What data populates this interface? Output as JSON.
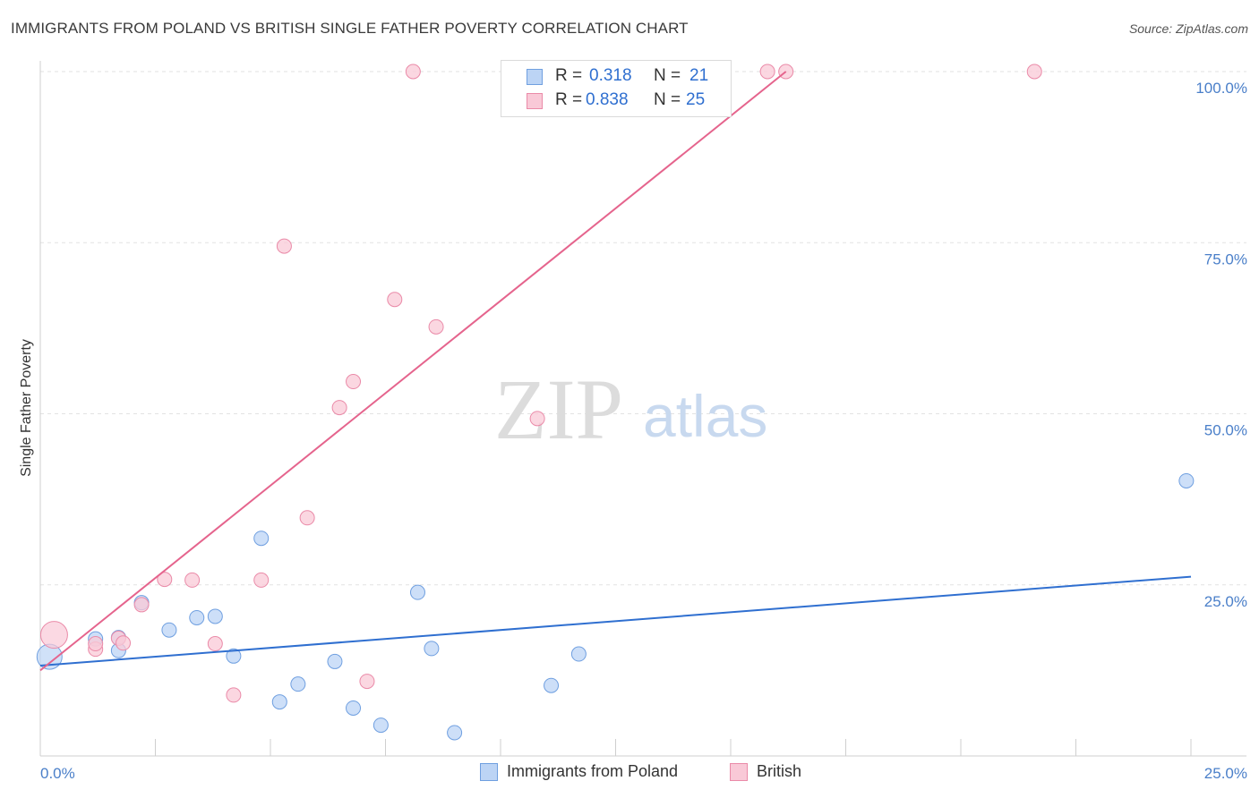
{
  "title": "IMMIGRANTS FROM POLAND VS BRITISH SINGLE FATHER POVERTY CORRELATION CHART",
  "source": "Source: ZipAtlas.com",
  "watermark": {
    "zip": "ZIP",
    "atlas": "atlas"
  },
  "legend": {
    "r_label": "R =",
    "n_label": "N =",
    "rows": [
      {
        "series": "Immigrants from Poland",
        "r": "0.318",
        "n": "21"
      },
      {
        "series": "British",
        "r": "0.838",
        "n": "25"
      }
    ]
  },
  "bottom_legend": [
    "Immigrants from Poland",
    "British"
  ],
  "colors": {
    "poland_fill": "#bcd4f5",
    "poland_stroke": "#6f9fe0",
    "poland_line": "#2f6fd0",
    "british_fill": "#f9c9d7",
    "british_stroke": "#ea8aa8",
    "british_line": "#e5648d",
    "tick_text": "#4a7fc9"
  },
  "chart_data": {
    "type": "scatter",
    "xlabel": "",
    "ylabel": "Single Father Poverty",
    "xlim": [
      0,
      25
    ],
    "ylim": [
      0,
      100
    ],
    "x_tick_labels": [
      {
        "value": 0,
        "label": "0.0%"
      },
      {
        "value": 25,
        "label": "25.0%"
      }
    ],
    "y_tick_labels": [
      {
        "value": 25,
        "label": "25.0%"
      },
      {
        "value": 50,
        "label": "50.0%"
      },
      {
        "value": 75,
        "label": "75.0%"
      },
      {
        "value": 100,
        "label": "100.0%"
      }
    ],
    "grid": true,
    "series": [
      {
        "name": "Immigrants from Poland",
        "points": [
          [
            0.2,
            14.5
          ],
          [
            1.2,
            17.1
          ],
          [
            1.7,
            17.3
          ],
          [
            1.7,
            15.4
          ],
          [
            2.2,
            22.4
          ],
          [
            2.8,
            18.4
          ],
          [
            3.4,
            20.2
          ],
          [
            3.8,
            20.4
          ],
          [
            4.2,
            14.6
          ],
          [
            4.8,
            31.8
          ],
          [
            5.2,
            7.9
          ],
          [
            5.6,
            10.5
          ],
          [
            6.4,
            13.8
          ],
          [
            6.8,
            7.0
          ],
          [
            7.4,
            4.5
          ],
          [
            8.2,
            23.9
          ],
          [
            8.5,
            15.7
          ],
          [
            9.0,
            3.4
          ],
          [
            11.1,
            10.3
          ],
          [
            11.7,
            14.9
          ],
          [
            24.9,
            40.2
          ]
        ],
        "trend": {
          "x": [
            0,
            25
          ],
          "y": [
            13.2,
            26.2
          ]
        }
      },
      {
        "name": "British",
        "points": [
          [
            0.3,
            17.7
          ],
          [
            1.2,
            15.6
          ],
          [
            1.2,
            16.4
          ],
          [
            1.7,
            17.2
          ],
          [
            1.8,
            16.5
          ],
          [
            2.2,
            22.1
          ],
          [
            2.7,
            25.8
          ],
          [
            3.3,
            25.7
          ],
          [
            3.8,
            16.4
          ],
          [
            4.2,
            8.9
          ],
          [
            4.8,
            25.7
          ],
          [
            5.3,
            74.5
          ],
          [
            5.8,
            34.8
          ],
          [
            6.5,
            50.9
          ],
          [
            6.8,
            54.7
          ],
          [
            7.1,
            10.9
          ],
          [
            7.7,
            66.7
          ],
          [
            8.1,
            100.0
          ],
          [
            8.6,
            62.7
          ],
          [
            10.2,
            100.0
          ],
          [
            10.8,
            49.3
          ],
          [
            12.4,
            100.0
          ],
          [
            15.8,
            100.0
          ],
          [
            16.2,
            100.0
          ],
          [
            21.6,
            100.0
          ]
        ],
        "trend": {
          "x": [
            0,
            16.2
          ],
          "y": [
            12.5,
            100
          ]
        }
      }
    ]
  }
}
